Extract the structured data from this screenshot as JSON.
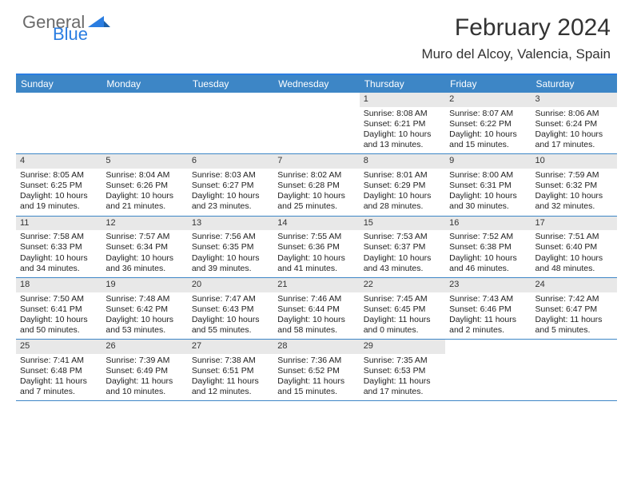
{
  "brand": {
    "line1": "General",
    "line2": "Blue"
  },
  "title": "February 2024",
  "location": "Muro del Alcoy, Valencia, Spain",
  "colors": {
    "header_bg": "#3d86c6",
    "header_border": "#2a7de1",
    "daynum_bg": "#e8e8e8",
    "text": "#222222",
    "brand_gray": "#6a6a6a",
    "brand_blue": "#2a7de1"
  },
  "weekdays": [
    "Sunday",
    "Monday",
    "Tuesday",
    "Wednesday",
    "Thursday",
    "Friday",
    "Saturday"
  ],
  "weeks": [
    [
      {
        "empty": true
      },
      {
        "empty": true
      },
      {
        "empty": true
      },
      {
        "empty": true
      },
      {
        "n": "1",
        "sr": "Sunrise: 8:08 AM",
        "ss": "Sunset: 6:21 PM",
        "d1": "Daylight: 10 hours",
        "d2": "and 13 minutes."
      },
      {
        "n": "2",
        "sr": "Sunrise: 8:07 AM",
        "ss": "Sunset: 6:22 PM",
        "d1": "Daylight: 10 hours",
        "d2": "and 15 minutes."
      },
      {
        "n": "3",
        "sr": "Sunrise: 8:06 AM",
        "ss": "Sunset: 6:24 PM",
        "d1": "Daylight: 10 hours",
        "d2": "and 17 minutes."
      }
    ],
    [
      {
        "n": "4",
        "sr": "Sunrise: 8:05 AM",
        "ss": "Sunset: 6:25 PM",
        "d1": "Daylight: 10 hours",
        "d2": "and 19 minutes."
      },
      {
        "n": "5",
        "sr": "Sunrise: 8:04 AM",
        "ss": "Sunset: 6:26 PM",
        "d1": "Daylight: 10 hours",
        "d2": "and 21 minutes."
      },
      {
        "n": "6",
        "sr": "Sunrise: 8:03 AM",
        "ss": "Sunset: 6:27 PM",
        "d1": "Daylight: 10 hours",
        "d2": "and 23 minutes."
      },
      {
        "n": "7",
        "sr": "Sunrise: 8:02 AM",
        "ss": "Sunset: 6:28 PM",
        "d1": "Daylight: 10 hours",
        "d2": "and 25 minutes."
      },
      {
        "n": "8",
        "sr": "Sunrise: 8:01 AM",
        "ss": "Sunset: 6:29 PM",
        "d1": "Daylight: 10 hours",
        "d2": "and 28 minutes."
      },
      {
        "n": "9",
        "sr": "Sunrise: 8:00 AM",
        "ss": "Sunset: 6:31 PM",
        "d1": "Daylight: 10 hours",
        "d2": "and 30 minutes."
      },
      {
        "n": "10",
        "sr": "Sunrise: 7:59 AM",
        "ss": "Sunset: 6:32 PM",
        "d1": "Daylight: 10 hours",
        "d2": "and 32 minutes."
      }
    ],
    [
      {
        "n": "11",
        "sr": "Sunrise: 7:58 AM",
        "ss": "Sunset: 6:33 PM",
        "d1": "Daylight: 10 hours",
        "d2": "and 34 minutes."
      },
      {
        "n": "12",
        "sr": "Sunrise: 7:57 AM",
        "ss": "Sunset: 6:34 PM",
        "d1": "Daylight: 10 hours",
        "d2": "and 36 minutes."
      },
      {
        "n": "13",
        "sr": "Sunrise: 7:56 AM",
        "ss": "Sunset: 6:35 PM",
        "d1": "Daylight: 10 hours",
        "d2": "and 39 minutes."
      },
      {
        "n": "14",
        "sr": "Sunrise: 7:55 AM",
        "ss": "Sunset: 6:36 PM",
        "d1": "Daylight: 10 hours",
        "d2": "and 41 minutes."
      },
      {
        "n": "15",
        "sr": "Sunrise: 7:53 AM",
        "ss": "Sunset: 6:37 PM",
        "d1": "Daylight: 10 hours",
        "d2": "and 43 minutes."
      },
      {
        "n": "16",
        "sr": "Sunrise: 7:52 AM",
        "ss": "Sunset: 6:38 PM",
        "d1": "Daylight: 10 hours",
        "d2": "and 46 minutes."
      },
      {
        "n": "17",
        "sr": "Sunrise: 7:51 AM",
        "ss": "Sunset: 6:40 PM",
        "d1": "Daylight: 10 hours",
        "d2": "and 48 minutes."
      }
    ],
    [
      {
        "n": "18",
        "sr": "Sunrise: 7:50 AM",
        "ss": "Sunset: 6:41 PM",
        "d1": "Daylight: 10 hours",
        "d2": "and 50 minutes."
      },
      {
        "n": "19",
        "sr": "Sunrise: 7:48 AM",
        "ss": "Sunset: 6:42 PM",
        "d1": "Daylight: 10 hours",
        "d2": "and 53 minutes."
      },
      {
        "n": "20",
        "sr": "Sunrise: 7:47 AM",
        "ss": "Sunset: 6:43 PM",
        "d1": "Daylight: 10 hours",
        "d2": "and 55 minutes."
      },
      {
        "n": "21",
        "sr": "Sunrise: 7:46 AM",
        "ss": "Sunset: 6:44 PM",
        "d1": "Daylight: 10 hours",
        "d2": "and 58 minutes."
      },
      {
        "n": "22",
        "sr": "Sunrise: 7:45 AM",
        "ss": "Sunset: 6:45 PM",
        "d1": "Daylight: 11 hours",
        "d2": "and 0 minutes."
      },
      {
        "n": "23",
        "sr": "Sunrise: 7:43 AM",
        "ss": "Sunset: 6:46 PM",
        "d1": "Daylight: 11 hours",
        "d2": "and 2 minutes."
      },
      {
        "n": "24",
        "sr": "Sunrise: 7:42 AM",
        "ss": "Sunset: 6:47 PM",
        "d1": "Daylight: 11 hours",
        "d2": "and 5 minutes."
      }
    ],
    [
      {
        "n": "25",
        "sr": "Sunrise: 7:41 AM",
        "ss": "Sunset: 6:48 PM",
        "d1": "Daylight: 11 hours",
        "d2": "and 7 minutes."
      },
      {
        "n": "26",
        "sr": "Sunrise: 7:39 AM",
        "ss": "Sunset: 6:49 PM",
        "d1": "Daylight: 11 hours",
        "d2": "and 10 minutes."
      },
      {
        "n": "27",
        "sr": "Sunrise: 7:38 AM",
        "ss": "Sunset: 6:51 PM",
        "d1": "Daylight: 11 hours",
        "d2": "and 12 minutes."
      },
      {
        "n": "28",
        "sr": "Sunrise: 7:36 AM",
        "ss": "Sunset: 6:52 PM",
        "d1": "Daylight: 11 hours",
        "d2": "and 15 minutes."
      },
      {
        "n": "29",
        "sr": "Sunrise: 7:35 AM",
        "ss": "Sunset: 6:53 PM",
        "d1": "Daylight: 11 hours",
        "d2": "and 17 minutes."
      },
      {
        "empty": true
      },
      {
        "empty": true
      }
    ]
  ]
}
